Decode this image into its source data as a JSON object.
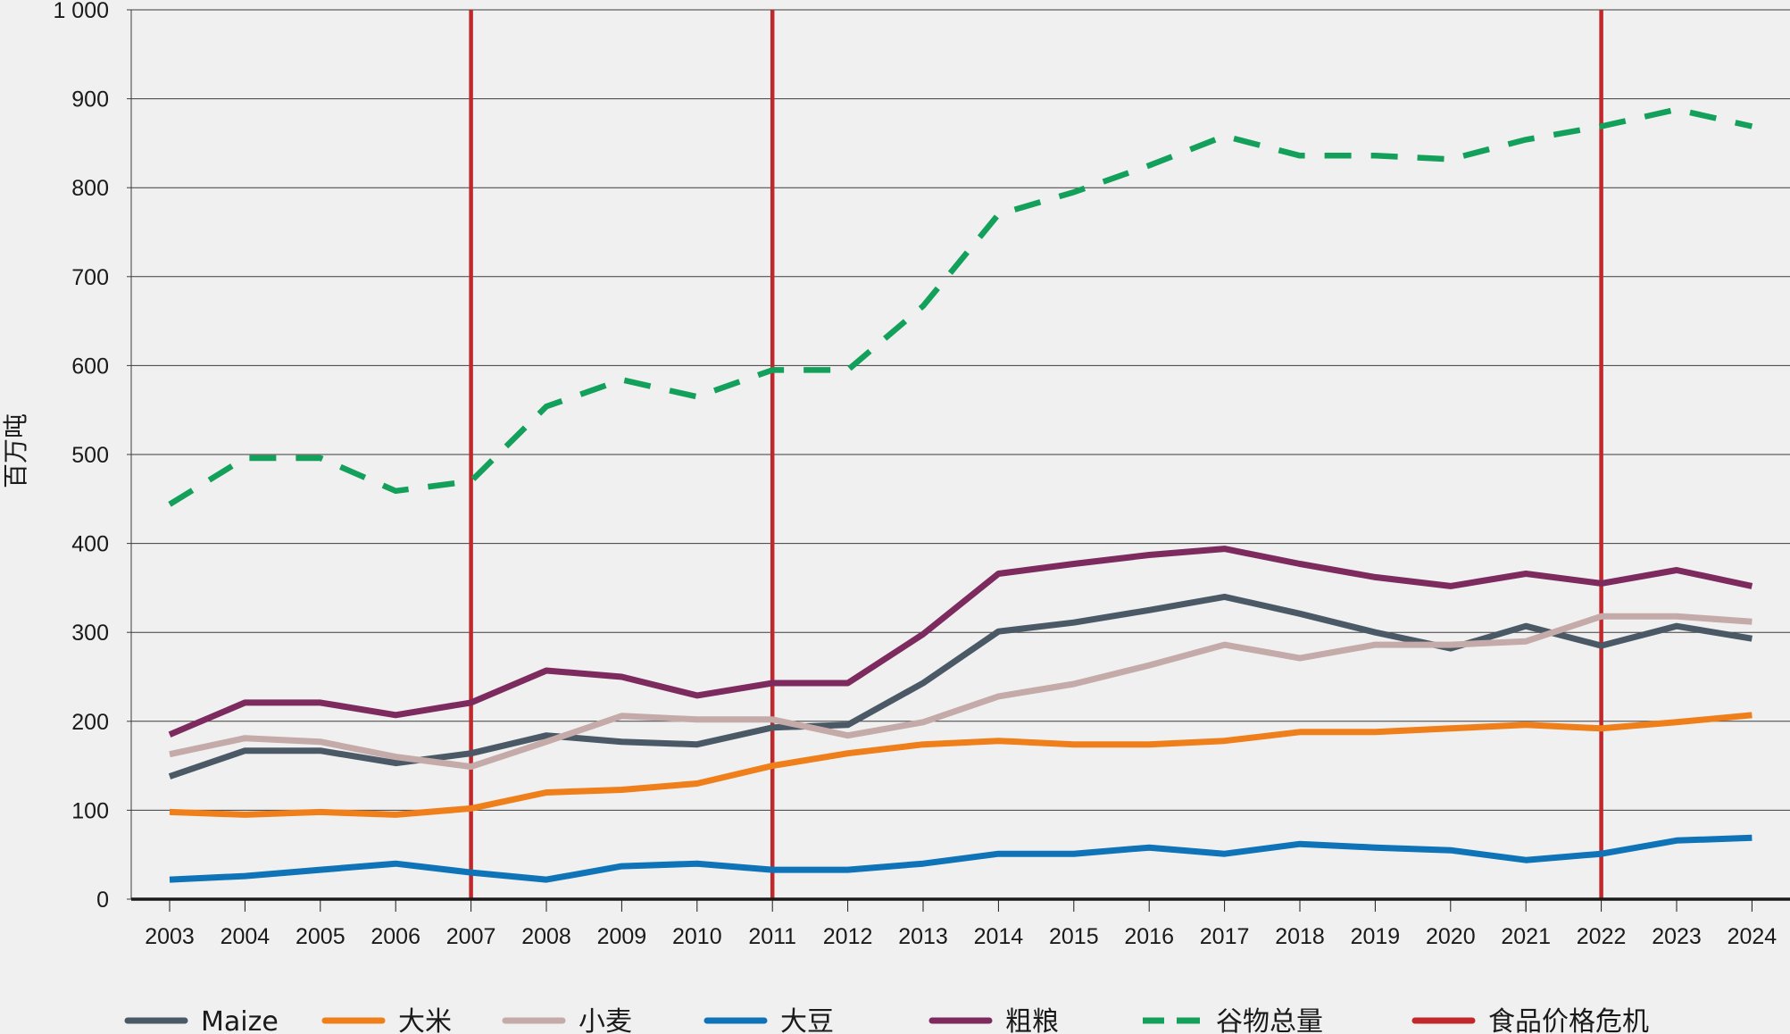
{
  "chart_data": {
    "type": "line",
    "title": "",
    "xlabel": "",
    "ylabel": "百万吨",
    "ylim": [
      0,
      1000
    ],
    "yticks": [
      0,
      100,
      200,
      300,
      400,
      500,
      600,
      700,
      800,
      900,
      1000
    ],
    "ytick_labels": [
      "0",
      "100",
      "200",
      "300",
      "400",
      "500",
      "600",
      "700",
      "800",
      "900",
      "1 000"
    ],
    "grid": true,
    "legend_position": "bottom",
    "x": [
      "2003",
      "2004",
      "2005",
      "2006",
      "2007",
      "2008",
      "2009",
      "2010",
      "2011",
      "2012",
      "2013",
      "2014",
      "2015",
      "2016",
      "2017",
      "2018",
      "2019",
      "2020",
      "2021",
      "2022",
      "2023",
      "2024"
    ],
    "series": [
      {
        "name": "Maize",
        "color": "#4a5965",
        "dash": "solid",
        "values": [
          138,
          167,
          167,
          153,
          164,
          184,
          177,
          174,
          193,
          196,
          243,
          301,
          311,
          325,
          340,
          321,
          300,
          282,
          307,
          285,
          307,
          293
        ]
      },
      {
        "name": "大米",
        "color": "#ef7f1a",
        "dash": "solid",
        "values": [
          98,
          95,
          98,
          95,
          102,
          120,
          123,
          130,
          150,
          164,
          174,
          178,
          174,
          174,
          178,
          188,
          188,
          192,
          196,
          192,
          199,
          207
        ]
      },
      {
        "name": "小麦",
        "color": "#c4aaa8",
        "dash": "solid",
        "values": [
          163,
          181,
          177,
          160,
          149,
          177,
          206,
          202,
          202,
          184,
          199,
          228,
          242,
          263,
          286,
          271,
          286,
          286,
          290,
          318,
          318,
          312
        ]
      },
      {
        "name": "大豆",
        "color": "#0f73b8",
        "dash": "solid",
        "values": [
          22,
          26,
          33,
          40,
          30,
          22,
          37,
          40,
          33,
          33,
          40,
          51,
          51,
          58,
          51,
          62,
          58,
          55,
          44,
          51,
          66,
          69
        ]
      },
      {
        "name": "粗粮",
        "color": "#7d2a5e",
        "dash": "solid",
        "values": [
          185,
          221,
          221,
          207,
          221,
          257,
          250,
          229,
          243,
          243,
          298,
          366,
          377,
          387,
          394,
          377,
          362,
          352,
          366,
          355,
          370,
          352
        ]
      },
      {
        "name": "谷物总量",
        "color": "#13a05a",
        "dash": "dashed",
        "values": [
          444,
          496,
          496,
          459,
          470,
          554,
          584,
          565,
          595,
          595,
          667,
          770,
          795,
          825,
          858,
          836,
          836,
          832,
          854,
          869,
          888,
          869
        ]
      }
    ],
    "food_price_crises": {
      "name": "食品价格危机",
      "color": "#c0282c",
      "years": [
        "2007",
        "2011",
        "2022"
      ]
    },
    "legend": [
      {
        "name": "Maize",
        "color": "#4a5965",
        "dash": "solid"
      },
      {
        "name": "大米",
        "color": "#ef7f1a",
        "dash": "solid"
      },
      {
        "name": "小麦",
        "color": "#c4aaa8",
        "dash": "solid"
      },
      {
        "name": "大豆",
        "color": "#0f73b8",
        "dash": "solid"
      },
      {
        "name": "粗粮",
        "color": "#7d2a5e",
        "dash": "solid"
      },
      {
        "name": "谷物总量",
        "color": "#13a05a",
        "dash": "dashed"
      },
      {
        "name": "食品价格危机",
        "color": "#c0282c",
        "dash": "solid"
      }
    ]
  }
}
